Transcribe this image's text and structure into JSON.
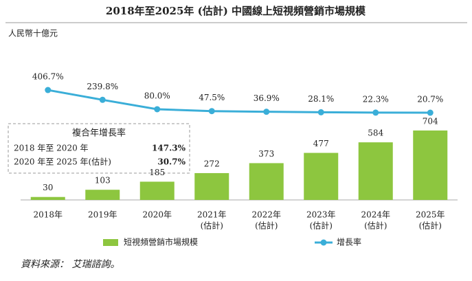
{
  "chart_data": {
    "type": "combo",
    "title": "2018年至2025年 (估計) 中國線上短視頻營銷市場規模",
    "y_label": "人民幣十億元",
    "categories": [
      [
        "2018年"
      ],
      [
        "2019年"
      ],
      [
        "2020年"
      ],
      [
        "2021年",
        "(估計)"
      ],
      [
        "2022年",
        "(估計)"
      ],
      [
        "2023年",
        "(估計)"
      ],
      [
        "2024年",
        "(估計)"
      ],
      [
        "2025年",
        "(估計)"
      ]
    ],
    "series": [
      {
        "name": "短視頻營銷市場規模",
        "type": "bar",
        "color": "#8dc63f",
        "values": [
          30,
          103,
          185,
          272,
          373,
          477,
          584,
          704
        ]
      },
      {
        "name": "增長率",
        "type": "line",
        "axis": "y2",
        "color": "#3aaed8",
        "values": [
          406.7,
          239.8,
          80.0,
          47.5,
          36.9,
          28.1,
          22.3,
          20.7
        ],
        "value_labels": [
          "406.7%",
          "239.8%",
          "80.0%",
          "47.5%",
          "36.9%",
          "28.1%",
          "22.3%",
          "20.7%"
        ]
      }
    ],
    "ylim": [
      0,
      1400
    ],
    "y2lim": [
      -1465,
      887
    ],
    "cagr": {
      "title": "複合年增長率",
      "rows": [
        [
          "2018 年至 2020 年",
          "147.3%"
        ],
        [
          "2020 年至 2025 年(估計)",
          "30.7%"
        ]
      ]
    },
    "source": "資料來源： 艾瑞諮詢。"
  }
}
